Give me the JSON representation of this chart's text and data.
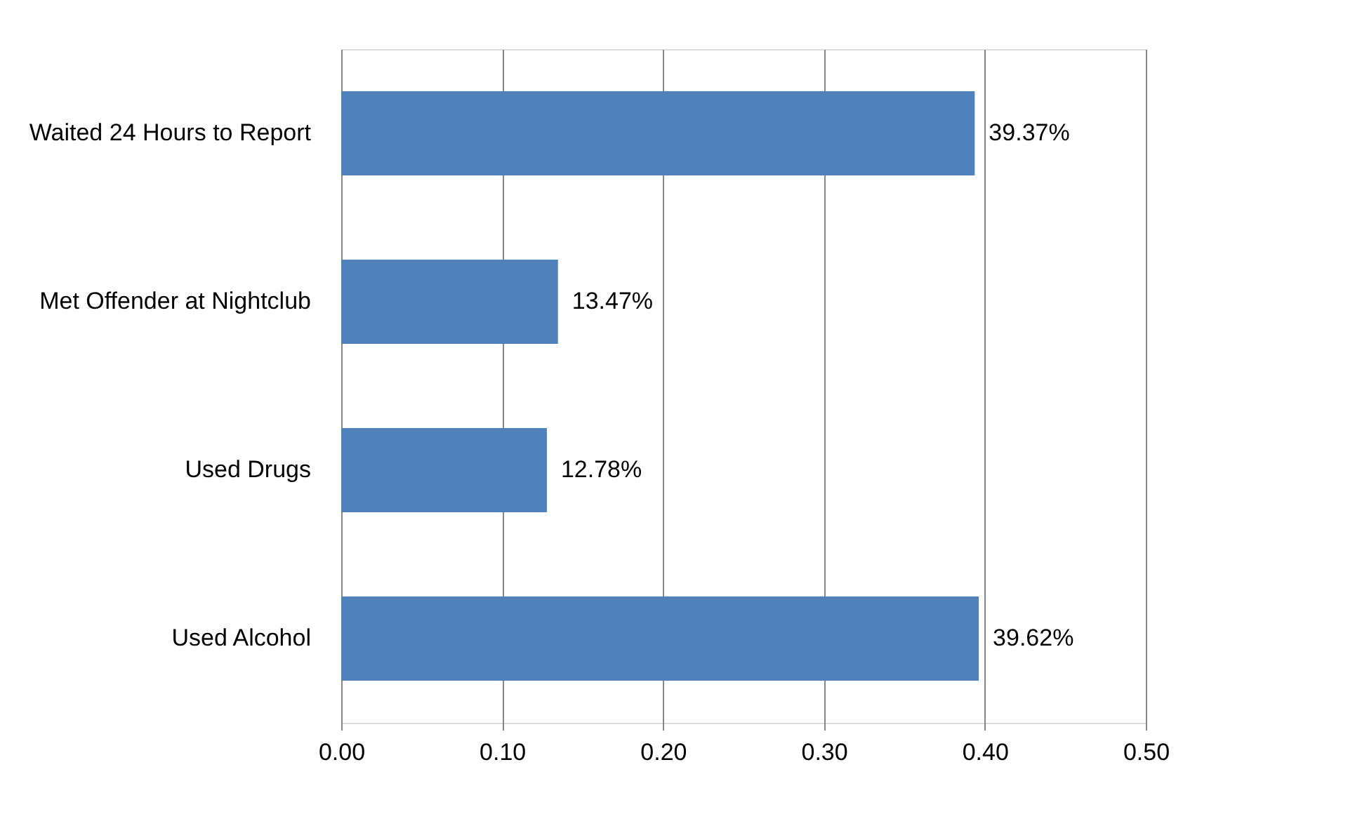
{
  "chart_data": {
    "type": "bar",
    "orientation": "horizontal",
    "categories": [
      "Waited 24 Hours to Report",
      "Met Offender at Nightclub",
      "Used Drugs",
      "Used Alcohol"
    ],
    "values": [
      0.3937,
      0.1347,
      0.1278,
      0.3962
    ],
    "value_labels": [
      "39.37%",
      "13.47%",
      "12.78%",
      "39.62%"
    ],
    "color": "#4f81bd",
    "xlim": [
      0,
      0.5
    ],
    "xticks": [
      {
        "value": 0,
        "label": "0.00"
      },
      {
        "value": 0.1,
        "label": "0.10"
      },
      {
        "value": 0.2,
        "label": "0.20"
      },
      {
        "value": 0.3,
        "label": "0.30"
      },
      {
        "value": 0.4,
        "label": "0.40"
      },
      {
        "value": 0.5,
        "label": "0.50"
      }
    ],
    "grid": "x"
  }
}
